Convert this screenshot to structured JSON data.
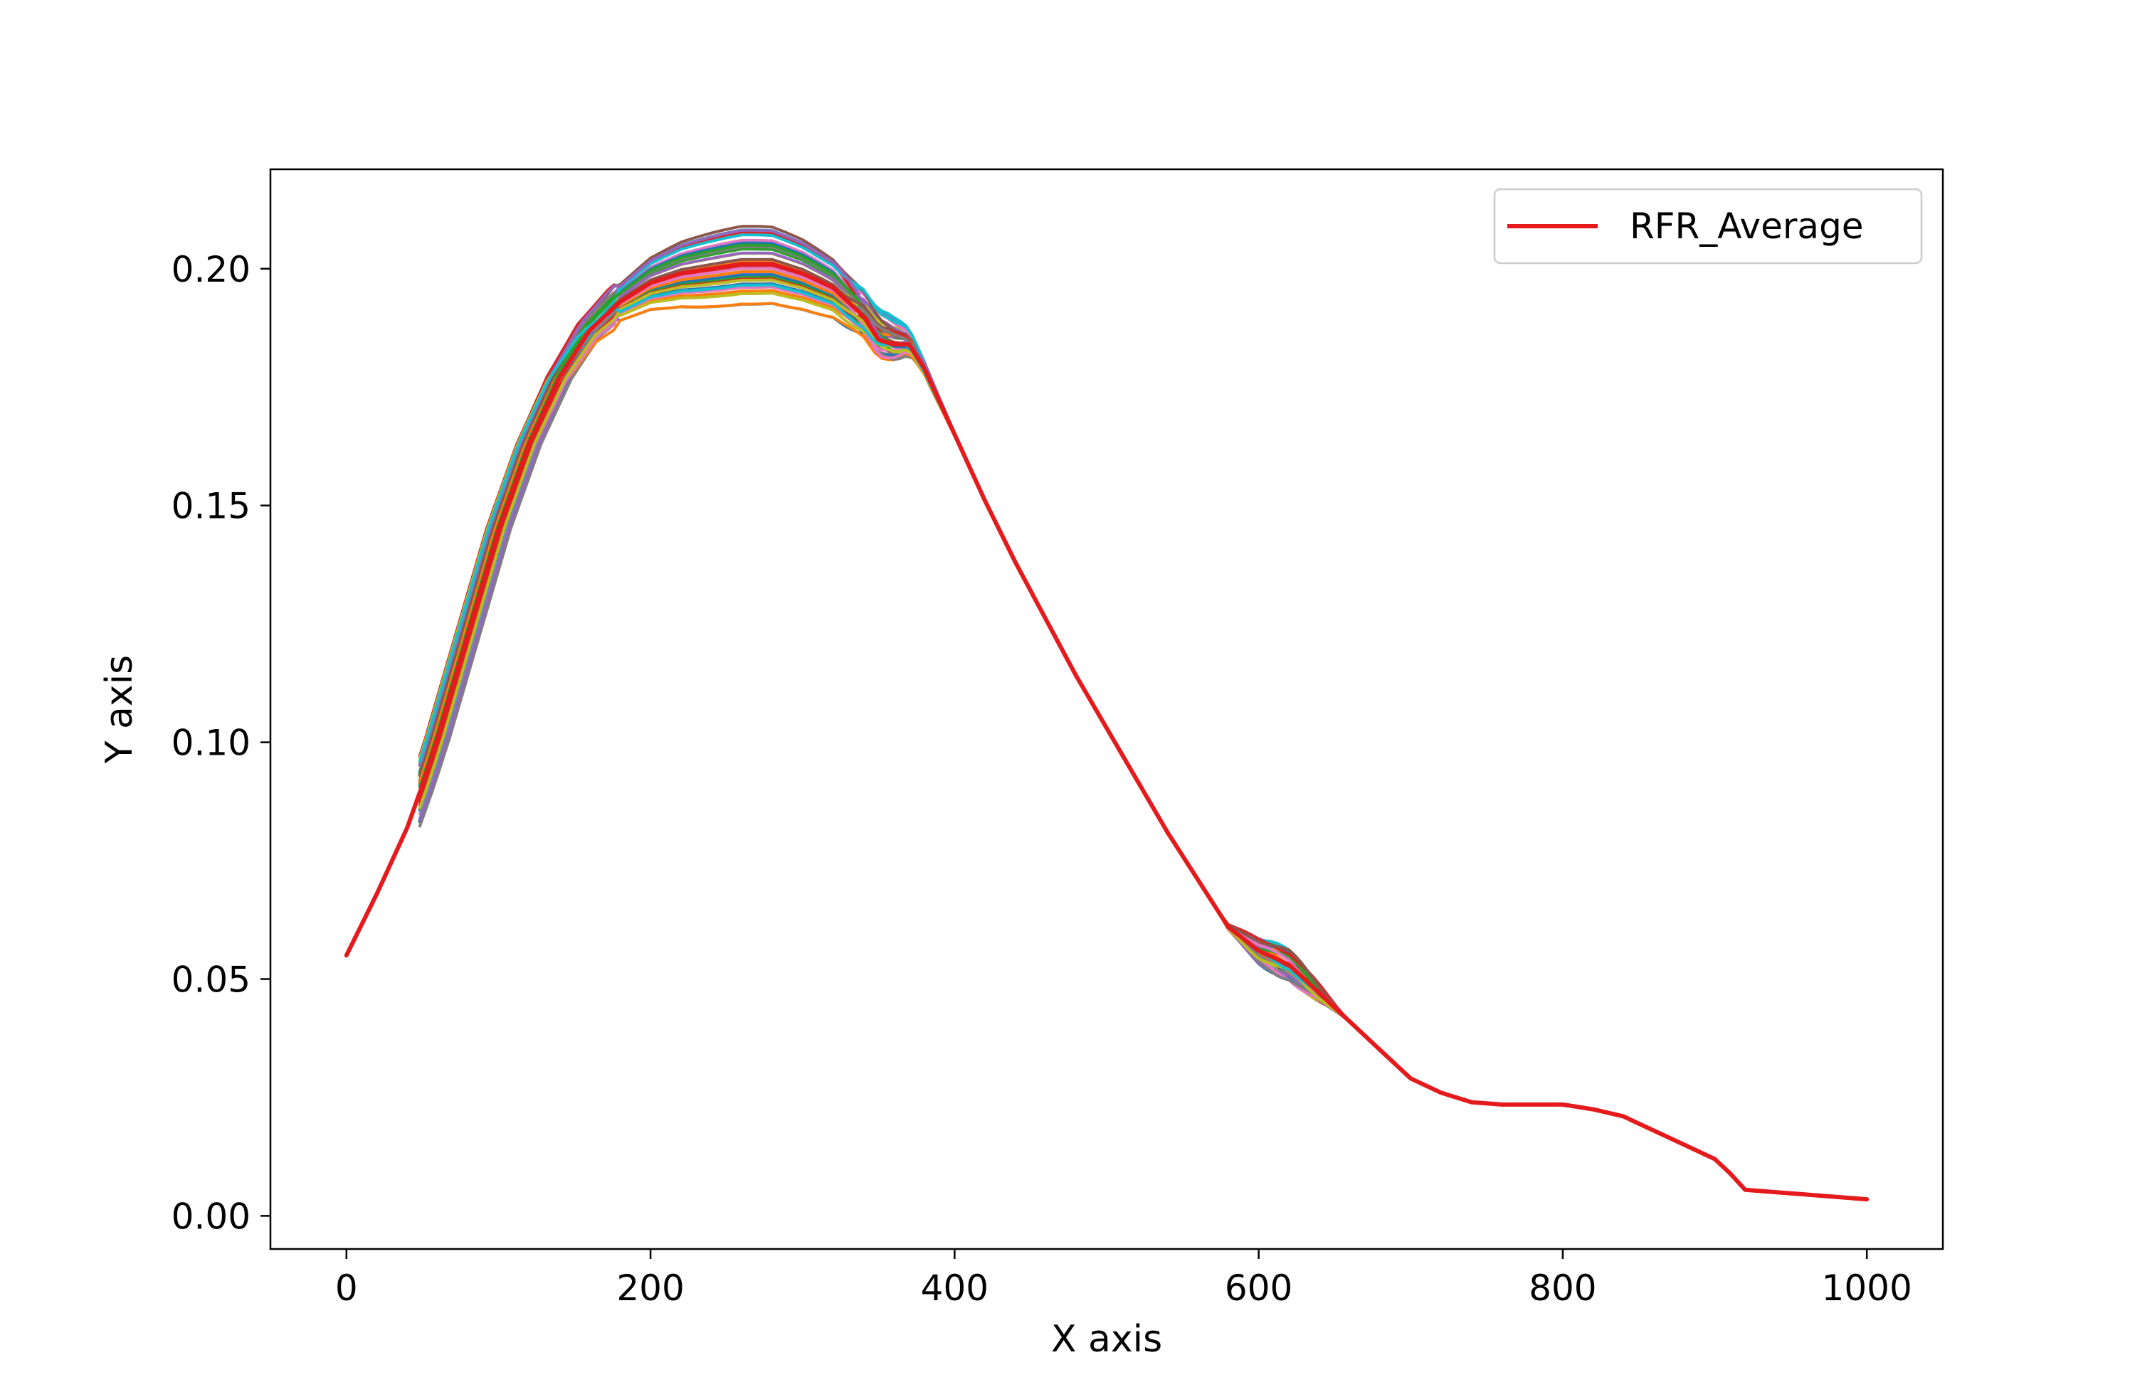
{
  "chart_data": {
    "type": "line",
    "title": "",
    "xlabel": "X axis",
    "ylabel": "Y axis",
    "xlim": [
      -50,
      1050
    ],
    "ylim": [
      -0.007,
      0.221
    ],
    "xticks": [
      0,
      200,
      400,
      600,
      800,
      1000
    ],
    "xtick_labels": [
      "0",
      "200",
      "400",
      "600",
      "800",
      "1000"
    ],
    "yticks": [
      0.0,
      0.05,
      0.1,
      0.15,
      0.2
    ],
    "ytick_labels": [
      "0.00",
      "0.05",
      "0.10",
      "0.15",
      "0.20"
    ],
    "grid": false,
    "legend_position": "top-right",
    "ensemble_colors": [
      "#1f77b4",
      "#ff7f0e",
      "#2ca02c",
      "#d62728",
      "#9467bd",
      "#8c564b",
      "#e377c2",
      "#7f7f7f",
      "#bcbd22",
      "#17becf"
    ],
    "ensemble_peak_range": [
      0.194,
      0.211
    ],
    "series": [
      {
        "name": "RFR_Average",
        "color": "#e41a1c",
        "x": [
          0,
          20,
          40,
          50,
          60,
          80,
          100,
          120,
          140,
          160,
          180,
          200,
          220,
          240,
          260,
          280,
          300,
          320,
          340,
          350,
          360,
          370,
          380,
          400,
          420,
          440,
          460,
          480,
          500,
          520,
          540,
          560,
          580,
          600,
          620,
          640,
          660,
          680,
          700,
          720,
          740,
          760,
          780,
          800,
          820,
          840,
          860,
          880,
          900,
          910,
          920,
          940,
          960,
          980,
          1000
        ],
        "y": [
          0.055,
          0.068,
          0.082,
          0.091,
          0.101,
          0.123,
          0.145,
          0.163,
          0.177,
          0.187,
          0.193,
          0.197,
          0.199,
          0.2,
          0.201,
          0.201,
          0.199,
          0.196,
          0.19,
          0.185,
          0.184,
          0.184,
          0.179,
          0.165,
          0.151,
          0.138,
          0.126,
          0.114,
          0.103,
          0.092,
          0.081,
          0.071,
          0.061,
          0.056,
          0.053,
          0.047,
          0.041,
          0.035,
          0.029,
          0.026,
          0.024,
          0.0235,
          0.0235,
          0.0235,
          0.0225,
          0.021,
          0.018,
          0.015,
          0.012,
          0.009,
          0.0055,
          0.005,
          0.0045,
          0.004,
          0.0035
        ]
      }
    ]
  }
}
